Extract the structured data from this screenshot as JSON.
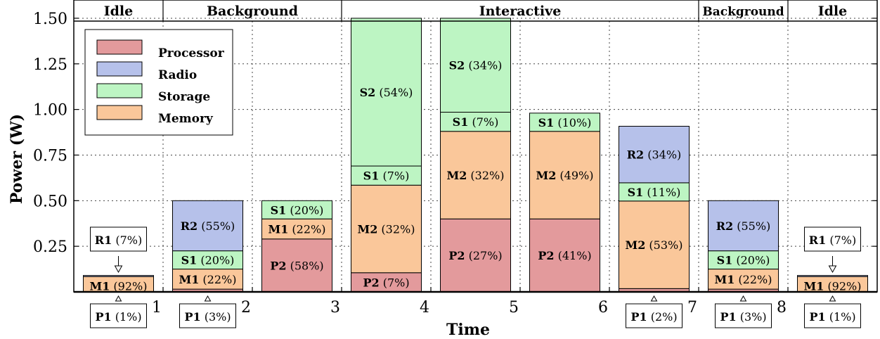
{
  "chart_data": {
    "type": "bar",
    "stacked": true,
    "xlabel": "Time",
    "ylabel": "Power (W)",
    "xlim": [
      0,
      9
    ],
    "ylim": [
      0,
      1.6
    ],
    "grid": true,
    "x_ticks": [
      {
        "value": 1,
        "label": "1"
      },
      {
        "value": 2,
        "label": "2"
      },
      {
        "value": 3,
        "label": "3"
      },
      {
        "value": 4,
        "label": "4"
      },
      {
        "value": 5,
        "label": "5"
      },
      {
        "value": 6,
        "label": "6"
      },
      {
        "value": 7,
        "label": "7"
      },
      {
        "value": 8,
        "label": "8"
      }
    ],
    "y_ticks": [
      {
        "value": 0.25,
        "label": "0.25"
      },
      {
        "value": 0.5,
        "label": "0.50"
      },
      {
        "value": 0.75,
        "label": "0.75"
      },
      {
        "value": 1.0,
        "label": "1.00"
      },
      {
        "value": 1.25,
        "label": "1.25"
      },
      {
        "value": 1.5,
        "label": "1.50"
      }
    ],
    "phases": [
      {
        "label": "Idle",
        "start": 0,
        "end": 1
      },
      {
        "label": "Background",
        "start": 1,
        "end": 3
      },
      {
        "label": "Interactive",
        "start": 3,
        "end": 7
      },
      {
        "label": "Background",
        "start": 7,
        "end": 8
      },
      {
        "label": "Idle",
        "start": 8,
        "end": 9
      }
    ],
    "legend": {
      "placement": "top-left",
      "entries": [
        {
          "name": "Processor",
          "color": "#e39a9c"
        },
        {
          "name": "Radio",
          "color": "#b6c1ea"
        },
        {
          "name": "Storage",
          "color": "#bdf5c3"
        },
        {
          "name": "Memory",
          "color": "#fac79a"
        }
      ]
    },
    "bars": [
      {
        "x": 0.5,
        "segments": [
          {
            "category": "Processor",
            "value": 0.001
          },
          {
            "category": "Memory",
            "value": 0.083,
            "name": "M1",
            "pct": "(92%)"
          },
          {
            "category": "Radio",
            "value": 0.006
          }
        ],
        "callouts": [
          {
            "name": "R1",
            "pct": "(7%)",
            "side": "top"
          },
          {
            "name": "P1",
            "pct": "(1%)",
            "side": "bottom"
          }
        ]
      },
      {
        "x": 1.5,
        "segments": [
          {
            "category": "Processor",
            "value": 0.015
          },
          {
            "category": "Memory",
            "value": 0.11,
            "name": "M1",
            "pct": "(22%)"
          },
          {
            "category": "Storage",
            "value": 0.1,
            "name": "S1",
            "pct": "(20%)"
          },
          {
            "category": "Radio",
            "value": 0.275,
            "name": "R2",
            "pct": "(55%)"
          }
        ],
        "callouts": [
          {
            "name": "P1",
            "pct": "(3%)",
            "side": "bottom"
          }
        ]
      },
      {
        "x": 2.5,
        "segments": [
          {
            "category": "Processor",
            "value": 0.29,
            "name": "P2",
            "pct": "(58%)"
          },
          {
            "category": "Memory",
            "value": 0.11,
            "name": "M1",
            "pct": "(22%)"
          },
          {
            "category": "Storage",
            "value": 0.1,
            "name": "S1",
            "pct": "(20%)"
          }
        ]
      },
      {
        "x": 3.5,
        "segments": [
          {
            "category": "Processor",
            "value": 0.105,
            "name": "P2",
            "pct": "(7%)"
          },
          {
            "category": "Memory",
            "value": 0.48,
            "name": "M2",
            "pct": "(32%)"
          },
          {
            "category": "Storage",
            "value": 0.105,
            "name": "S1",
            "pct": "(7%)"
          },
          {
            "category": "Storage",
            "value": 0.81,
            "name": "S2",
            "pct": "(54%)"
          }
        ]
      },
      {
        "x": 4.5,
        "segments": [
          {
            "category": "Processor",
            "value": 0.4,
            "name": "P2",
            "pct": "(27%)"
          },
          {
            "category": "Memory",
            "value": 0.48,
            "name": "M2",
            "pct": "(32%)"
          },
          {
            "category": "Storage",
            "value": 0.105,
            "name": "S1",
            "pct": "(7%)"
          },
          {
            "category": "Storage",
            "value": 0.515,
            "name": "S2",
            "pct": "(34%)"
          }
        ]
      },
      {
        "x": 5.5,
        "segments": [
          {
            "category": "Processor",
            "value": 0.4,
            "name": "P2",
            "pct": "(41%)"
          },
          {
            "category": "Memory",
            "value": 0.48,
            "name": "M2",
            "pct": "(49%)"
          },
          {
            "category": "Storage",
            "value": 0.1,
            "name": "S1",
            "pct": "(10%)"
          }
        ]
      },
      {
        "x": 6.5,
        "segments": [
          {
            "category": "Processor",
            "value": 0.018
          },
          {
            "category": "Memory",
            "value": 0.48,
            "name": "M2",
            "pct": "(53%)"
          },
          {
            "category": "Storage",
            "value": 0.1,
            "name": "S1",
            "pct": "(11%)"
          },
          {
            "category": "Radio",
            "value": 0.31,
            "name": "R2",
            "pct": "(34%)"
          }
        ],
        "callouts": [
          {
            "name": "P1",
            "pct": "(2%)",
            "side": "bottom"
          }
        ]
      },
      {
        "x": 7.5,
        "segments": [
          {
            "category": "Processor",
            "value": 0.015
          },
          {
            "category": "Memory",
            "value": 0.11,
            "name": "M1",
            "pct": "(22%)"
          },
          {
            "category": "Storage",
            "value": 0.1,
            "name": "S1",
            "pct": "(20%)"
          },
          {
            "category": "Radio",
            "value": 0.275,
            "name": "R2",
            "pct": "(55%)"
          }
        ],
        "callouts": [
          {
            "name": "P1",
            "pct": "(3%)",
            "side": "bottom"
          }
        ]
      },
      {
        "x": 8.5,
        "segments": [
          {
            "category": "Processor",
            "value": 0.001
          },
          {
            "category": "Memory",
            "value": 0.083,
            "name": "M1",
            "pct": "(92%)"
          },
          {
            "category": "Radio",
            "value": 0.006
          }
        ],
        "callouts": [
          {
            "name": "R1",
            "pct": "(7%)",
            "side": "top"
          },
          {
            "name": "P1",
            "pct": "(1%)",
            "side": "bottom"
          }
        ]
      }
    ]
  }
}
